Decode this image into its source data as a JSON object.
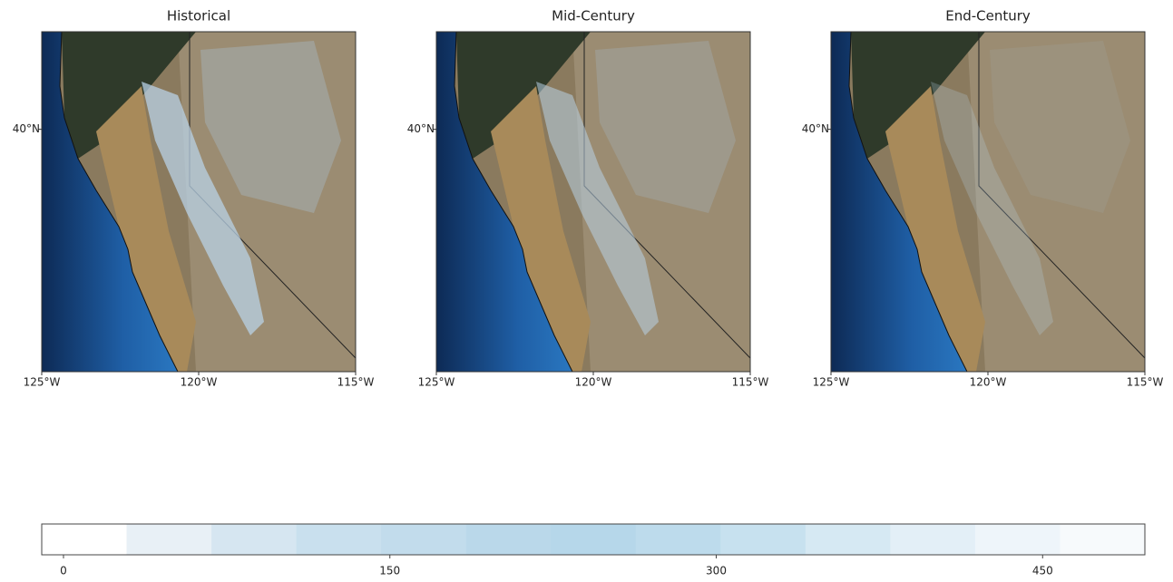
{
  "panels": [
    {
      "title": "Historical"
    },
    {
      "title": "Mid-Century"
    },
    {
      "title": "End-Century"
    }
  ],
  "map": {
    "xlim": [
      -125,
      -115
    ],
    "xticks": [
      {
        "value": -125,
        "label": "125°W"
      },
      {
        "value": -120,
        "label": "120°W"
      },
      {
        "value": -115,
        "label": "115°W"
      }
    ],
    "ylim": [
      32.3,
      43.1
    ],
    "yticks": [
      {
        "value": 40,
        "label": "40°N"
      }
    ]
  },
  "colorbar": {
    "lim": [
      -10,
      497
    ],
    "ticks": [
      0,
      150,
      300,
      450
    ],
    "colors": [
      "#ffffff",
      "#e8f0f6",
      "#d6e6f1",
      "#c9e0ee",
      "#c2dcec",
      "#bad8ea",
      "#b6d7ea",
      "#bddbec",
      "#c7e1ef",
      "#d6e9f3",
      "#e3eff7",
      "#eef5fa",
      "#f7fafc"
    ]
  }
}
